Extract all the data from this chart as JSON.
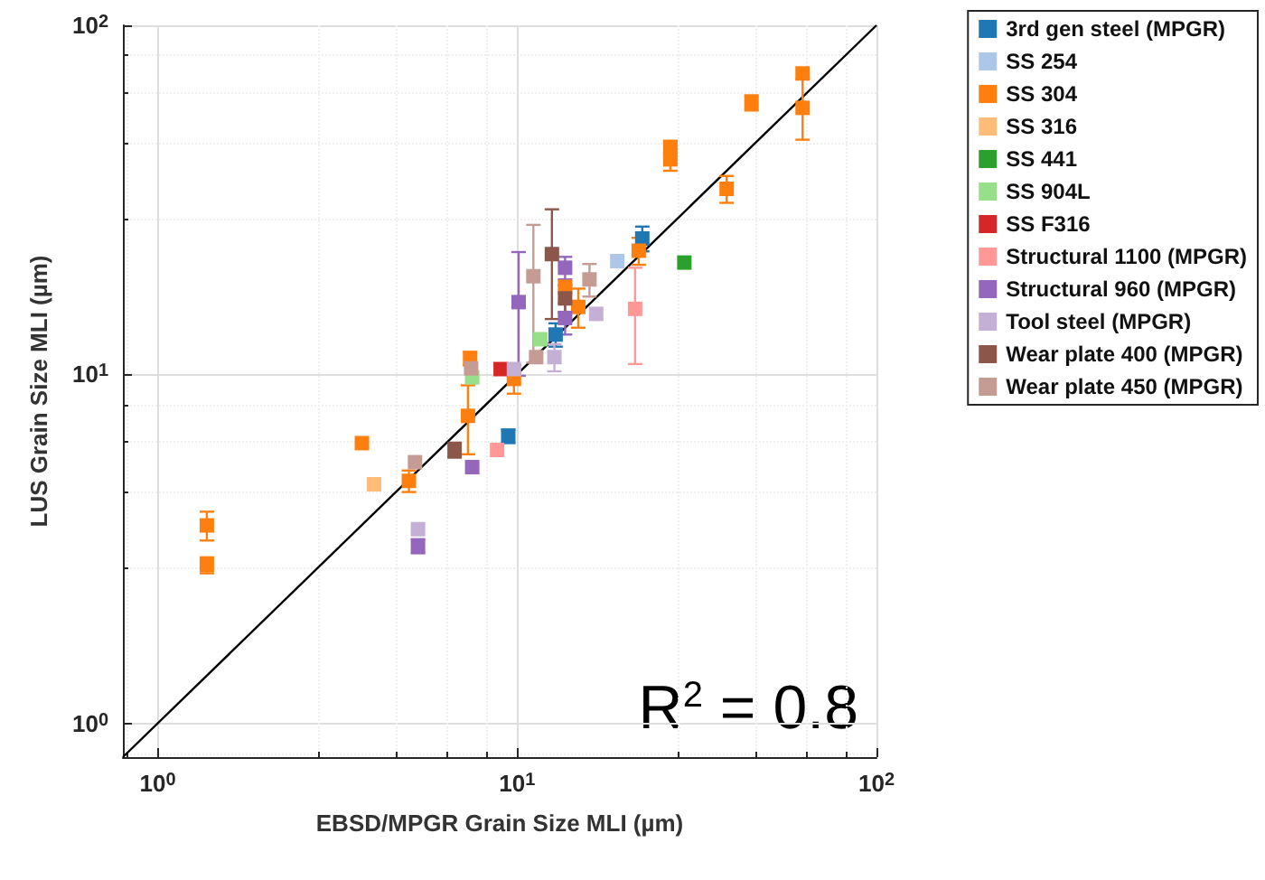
{
  "chart_data": {
    "type": "scatter",
    "xlabel": "EBSD/MPGR Grain Size MLI (µm)",
    "ylabel": "LUS Grain Size MLI (µm)",
    "log": "xy",
    "grid": true,
    "legend": "right",
    "marker": "square",
    "xlim": [
      0.8,
      100
    ],
    "ylim": [
      0.8,
      100
    ],
    "xticks": [
      {
        "value": 1,
        "label": "10$^{0}$"
      },
      {
        "value": 10,
        "label": "10$^{1}$"
      },
      {
        "value": 100,
        "label": "10$^{2}$"
      }
    ],
    "yticks": [
      {
        "value": 1,
        "label": "10$^{0}$"
      },
      {
        "value": 10,
        "label": "10$^{1}$"
      },
      {
        "value": 100,
        "label": "10$^{2}$"
      }
    ],
    "annotations": [
      "R$^{2}$ = 0.8"
    ],
    "series": [
      {
        "name": "3rd gen steel (MPGR)",
        "color": "#1f77b4",
        "x": [
          9.45,
          12.8,
          22.3
        ],
        "values": [
          6.65,
          13.0,
          24.5
        ],
        "errors": [
          0.3,
          1,
          2
        ]
      },
      {
        "name": "SS 254",
        "color": "#aec7e8",
        "x": [
          19.0
        ],
        "values": [
          21.1
        ],
        "errors": [
          null
        ]
      },
      {
        "name": "SS 304",
        "color": "#ff7f0e",
        "x": [
          1.37,
          1.37,
          3.7,
          5.0,
          7.3,
          7.4,
          9.8,
          13.6,
          14.8,
          21.8,
          26.7,
          26.7,
          38.3,
          44.9,
          62.3,
          62.3
        ],
        "values": [
          3.69,
          2.84,
          6.35,
          4.95,
          7.6,
          11.1,
          9.7,
          17.8,
          15.6,
          22.6,
          44.7,
          41.3,
          34,
          60,
          72.8,
          58
        ],
        "errors": [
          0.35,
          0.15,
          null,
          0.35,
          [
            5.9,
            9.3
          ],
          0.5,
          0.9,
          null,
          2,
          2,
          2,
          3,
          3,
          3,
          null,
          [
            47,
            70
          ]
        ]
      },
      {
        "name": "SS 316",
        "color": "#ffbb78",
        "x": [
          4.0
        ],
        "values": [
          4.84
        ],
        "errors": [
          null
        ]
      },
      {
        "name": "SS 441",
        "color": "#2ca02c",
        "x": [
          29.2
        ],
        "values": [
          20.9
        ],
        "errors": [
          null
        ]
      },
      {
        "name": "SS 904L",
        "color": "#98df8a",
        "x": [
          7.5,
          11.6
        ],
        "values": [
          9.8,
          12.6
        ],
        "errors": [
          null,
          null
        ]
      },
      {
        "name": "SS F316",
        "color": "#d62728",
        "x": [
          9.0
        ],
        "values": [
          10.35
        ],
        "errors": [
          null
        ]
      },
      {
        "name": "Structural 1100 (MPGR)",
        "color": "#ff9896",
        "x": [
          8.8,
          21.3
        ],
        "values": [
          6.07,
          15.4
        ],
        "errors": [
          null,
          [
            10.7,
            20.2
          ]
        ]
      },
      {
        "name": "Structural 960 (MPGR)",
        "color": "#9467bd",
        "x": [
          5.3,
          7.5,
          10.1,
          13.6,
          13.6
        ],
        "values": [
          3.22,
          5.42,
          16.1,
          20.2,
          14.5
        ],
        "errors": [
          0.15,
          null,
          [
            9.9,
            22.4
          ],
          1.5,
          1.5
        ]
      },
      {
        "name": "Tool steel (MPGR)",
        "color": "#c5b0d5",
        "x": [
          5.3,
          9.8,
          12.7,
          16.6
        ],
        "values": [
          3.6,
          10.35,
          11.2,
          14.9
        ],
        "errors": [
          null,
          null,
          1,
          null
        ]
      },
      {
        "name": "Wear plate 400 (MPGR)",
        "color": "#8c564b",
        "x": [
          6.7,
          12.5,
          13.6
        ],
        "values": [
          6.07,
          22.1,
          16.5
        ],
        "errors": [
          0.3,
          [
            14.4,
            29.7
          ],
          1.5
        ]
      },
      {
        "name": "Wear plate 450 (MPGR)",
        "color": "#c49c94",
        "x": [
          5.2,
          7.45,
          11.1,
          11.3,
          15.9
        ],
        "values": [
          5.6,
          10.4,
          19.1,
          11.2,
          18.7
        ],
        "errors": [
          null,
          null,
          [
            10.8,
            26.8
          ],
          null,
          2
        ]
      },
      {
        "type": "line",
        "color": "#000000",
        "x": [
          0.8,
          100
        ],
        "values": [
          0.8,
          100
        ],
        "marker": "none"
      }
    ]
  }
}
